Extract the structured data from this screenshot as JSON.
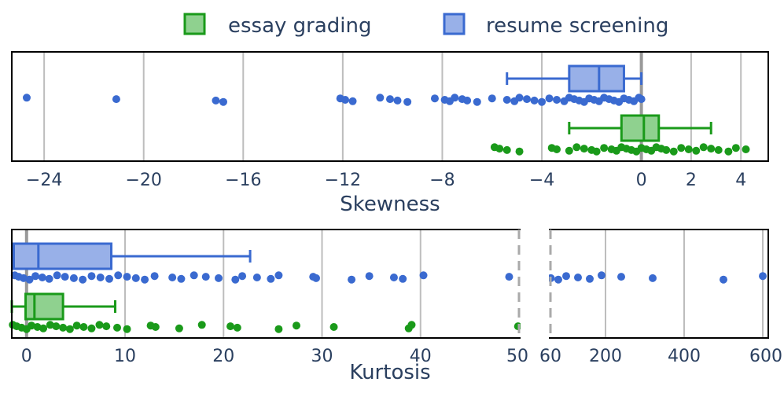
{
  "legend": {
    "items": [
      {
        "label": "essay grading",
        "color": "#1a9a1a",
        "fill": "#8fd18f"
      },
      {
        "label": "resume screening",
        "color": "#3a6ad0",
        "fill": "#98b0e8"
      }
    ]
  },
  "chart_data": [
    {
      "type": "box",
      "orientation": "horizontal",
      "xlabel": "Skewness",
      "xlim": [
        -25.3,
        5.1
      ],
      "xticks": [
        -24,
        -20,
        -16,
        -12,
        -8,
        -4,
        0,
        2,
        4
      ],
      "xtick_labels": [
        "−24",
        "−20",
        "−16",
        "−12",
        "−8",
        "−4",
        "0",
        "2",
        "4"
      ],
      "grid": true,
      "zero_line": true,
      "series": [
        {
          "name": "resume screening",
          "color": "#3a6ad0",
          "q1": -2.9,
          "median": -1.7,
          "q3": -0.7,
          "whisker_low": -5.4,
          "whisker_high": 0.0,
          "points": [
            -24.7,
            -21.1,
            -17.1,
            -16.8,
            -12.1,
            -11.9,
            -11.6,
            -10.5,
            -10.1,
            -9.8,
            -9.4,
            -8.3,
            -7.9,
            -7.7,
            -7.5,
            -7.2,
            -7.0,
            -6.6,
            -6.0,
            -5.4,
            -5.1,
            -4.9,
            -4.6,
            -4.3,
            -4.0,
            -3.7,
            -3.4,
            -3.1,
            -2.9,
            -2.7,
            -2.5,
            -2.3,
            -2.1,
            -1.9,
            -1.7,
            -1.5,
            -1.3,
            -1.1,
            -0.9,
            -0.7,
            -0.5,
            -0.3,
            -0.1,
            0.0
          ]
        },
        {
          "name": "essay grading",
          "color": "#1a9a1a",
          "q1": -0.8,
          "median": 0.1,
          "q3": 0.7,
          "whisker_low": -2.9,
          "whisker_high": 2.8,
          "points": [
            -5.9,
            -5.7,
            -5.4,
            -4.9,
            -3.6,
            -3.4,
            -2.9,
            -2.6,
            -2.3,
            -2.0,
            -1.8,
            -1.5,
            -1.2,
            -1.0,
            -0.8,
            -0.6,
            -0.4,
            -0.2,
            0.0,
            0.2,
            0.4,
            0.6,
            0.8,
            1.0,
            1.3,
            1.6,
            1.9,
            2.2,
            2.5,
            2.8,
            3.1,
            3.5,
            3.8,
            4.2
          ]
        }
      ]
    },
    {
      "type": "box",
      "orientation": "horizontal",
      "xlabel": "Kurtosis",
      "broken_axis": true,
      "xlim_left": [
        -1.5,
        50
      ],
      "xlim_right": [
        60,
        600
      ],
      "xticks_left": [
        0,
        10,
        20,
        30,
        40,
        50
      ],
      "xticks_right": [
        60,
        200,
        400,
        600
      ],
      "grid": true,
      "zero_line": true,
      "series": [
        {
          "name": "resume screening",
          "color": "#3a6ad0",
          "q1": -1.3,
          "median": 1.2,
          "q3": 8.6,
          "whisker_low": -1.3,
          "whisker_high": 22.7,
          "points": [
            -1.2,
            -0.8,
            -0.3,
            0.3,
            0.9,
            1.6,
            2.3,
            3.1,
            3.9,
            4.8,
            5.7,
            6.6,
            7.5,
            8.4,
            9.3,
            10.2,
            11.1,
            12.0,
            13.0,
            14.8,
            15.7,
            17.0,
            18.2,
            19.5,
            21.2,
            21.9,
            23.4,
            24.8,
            25.6,
            29.1,
            29.4,
            33.0,
            34.8,
            37.3,
            38.2,
            40.3,
            49.0,
            61,
            80,
            100,
            130,
            160,
            190,
            240,
            320,
            500,
            600
          ]
        },
        {
          "name": "essay grading",
          "color": "#1a9a1a",
          "q1": -0.1,
          "median": 0.8,
          "q3": 3.7,
          "whisker_low": -1.5,
          "whisker_high": 9.0,
          "points": [
            -1.4,
            -1.0,
            -0.5,
            0.0,
            0.5,
            1.1,
            1.7,
            2.4,
            3.0,
            3.7,
            4.4,
            5.1,
            5.8,
            6.6,
            7.4,
            8.1,
            9.2,
            10.2,
            12.6,
            13.1,
            15.5,
            17.8,
            20.7,
            21.4,
            25.6,
            27.4,
            31.2,
            38.8,
            39.1,
            49.9
          ]
        }
      ]
    }
  ]
}
